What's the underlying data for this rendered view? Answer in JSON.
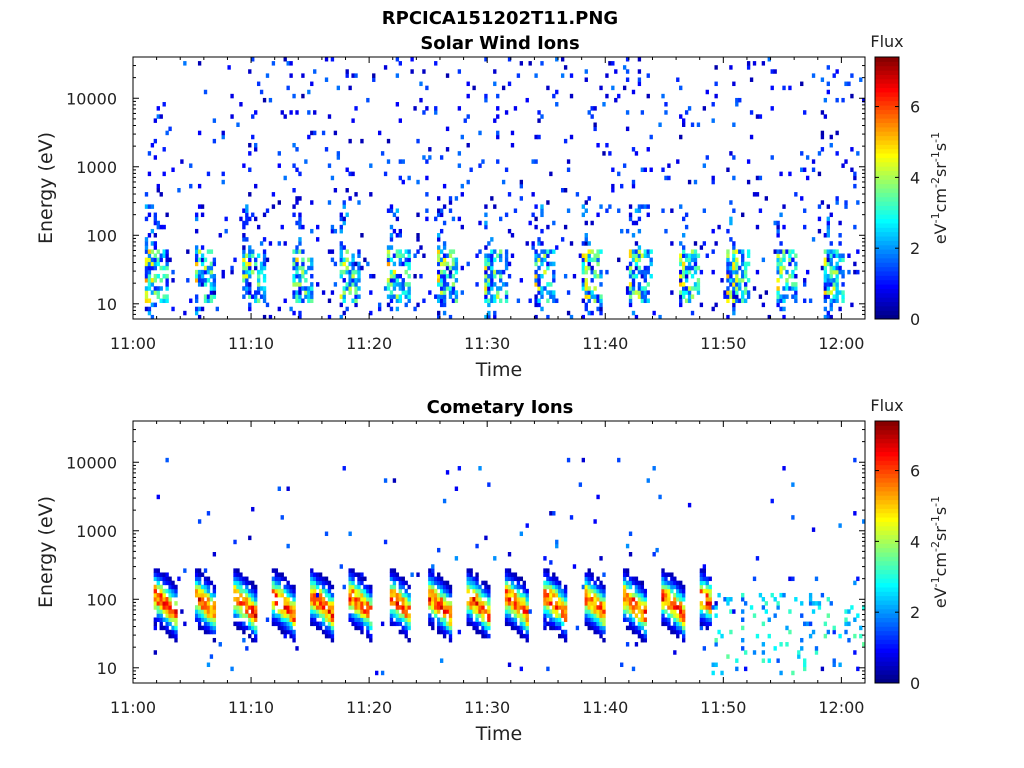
{
  "figure_title": "RPCICA151202T11.PNG",
  "colorbar": {
    "title": "Flux",
    "label_parts": [
      "eV",
      "-1",
      "cm",
      "-2",
      "sr",
      "-1",
      "s",
      "-1"
    ],
    "ticks": [
      "0",
      "2",
      "4",
      "6"
    ],
    "range": [
      0,
      7.4
    ],
    "colormap": "jet"
  },
  "chart_data": [
    {
      "type": "heatmap",
      "title": "Solar Wind Ions",
      "xlabel": "Time",
      "ylabel": "Energy (eV)",
      "yscale": "log",
      "xlim": [
        "11:00",
        "12:02"
      ],
      "ylim": [
        6,
        40000
      ],
      "x_ticks": [
        "11:00",
        "11:10",
        "11:20",
        "11:30",
        "11:40",
        "11:50",
        "12:00"
      ],
      "y_ticks": [
        "10",
        "100",
        "1000",
        "10000"
      ],
      "clim": [
        0,
        7.4
      ],
      "scan_period_min": 4.1,
      "scan_start_min": 1.1,
      "low_energy_band_eV": [
        10,
        60
      ],
      "peak_flux": 5.5,
      "background": "sparse low-flux counts 6 eV - 40 keV"
    },
    {
      "type": "heatmap",
      "title": "Cometary Ions",
      "xlabel": "Time",
      "ylabel": "Energy (eV)",
      "yscale": "log",
      "xlim": [
        "11:00",
        "12:02"
      ],
      "ylim": [
        6,
        40000
      ],
      "x_ticks": [
        "11:00",
        "11:10",
        "11:20",
        "11:30",
        "11:40",
        "11:50",
        "12:00"
      ],
      "y_ticks": [
        "10",
        "100",
        "1000",
        "10000"
      ],
      "clim": [
        0,
        7.4
      ],
      "scan_period_min": 3.3,
      "scan_start_min": 1.8,
      "low_energy_band_eV": [
        10,
        150
      ],
      "peak_flux": 7.0,
      "activity_end": "11:49",
      "background": "sparse low-flux counts 6 eV - 10 keV"
    }
  ]
}
